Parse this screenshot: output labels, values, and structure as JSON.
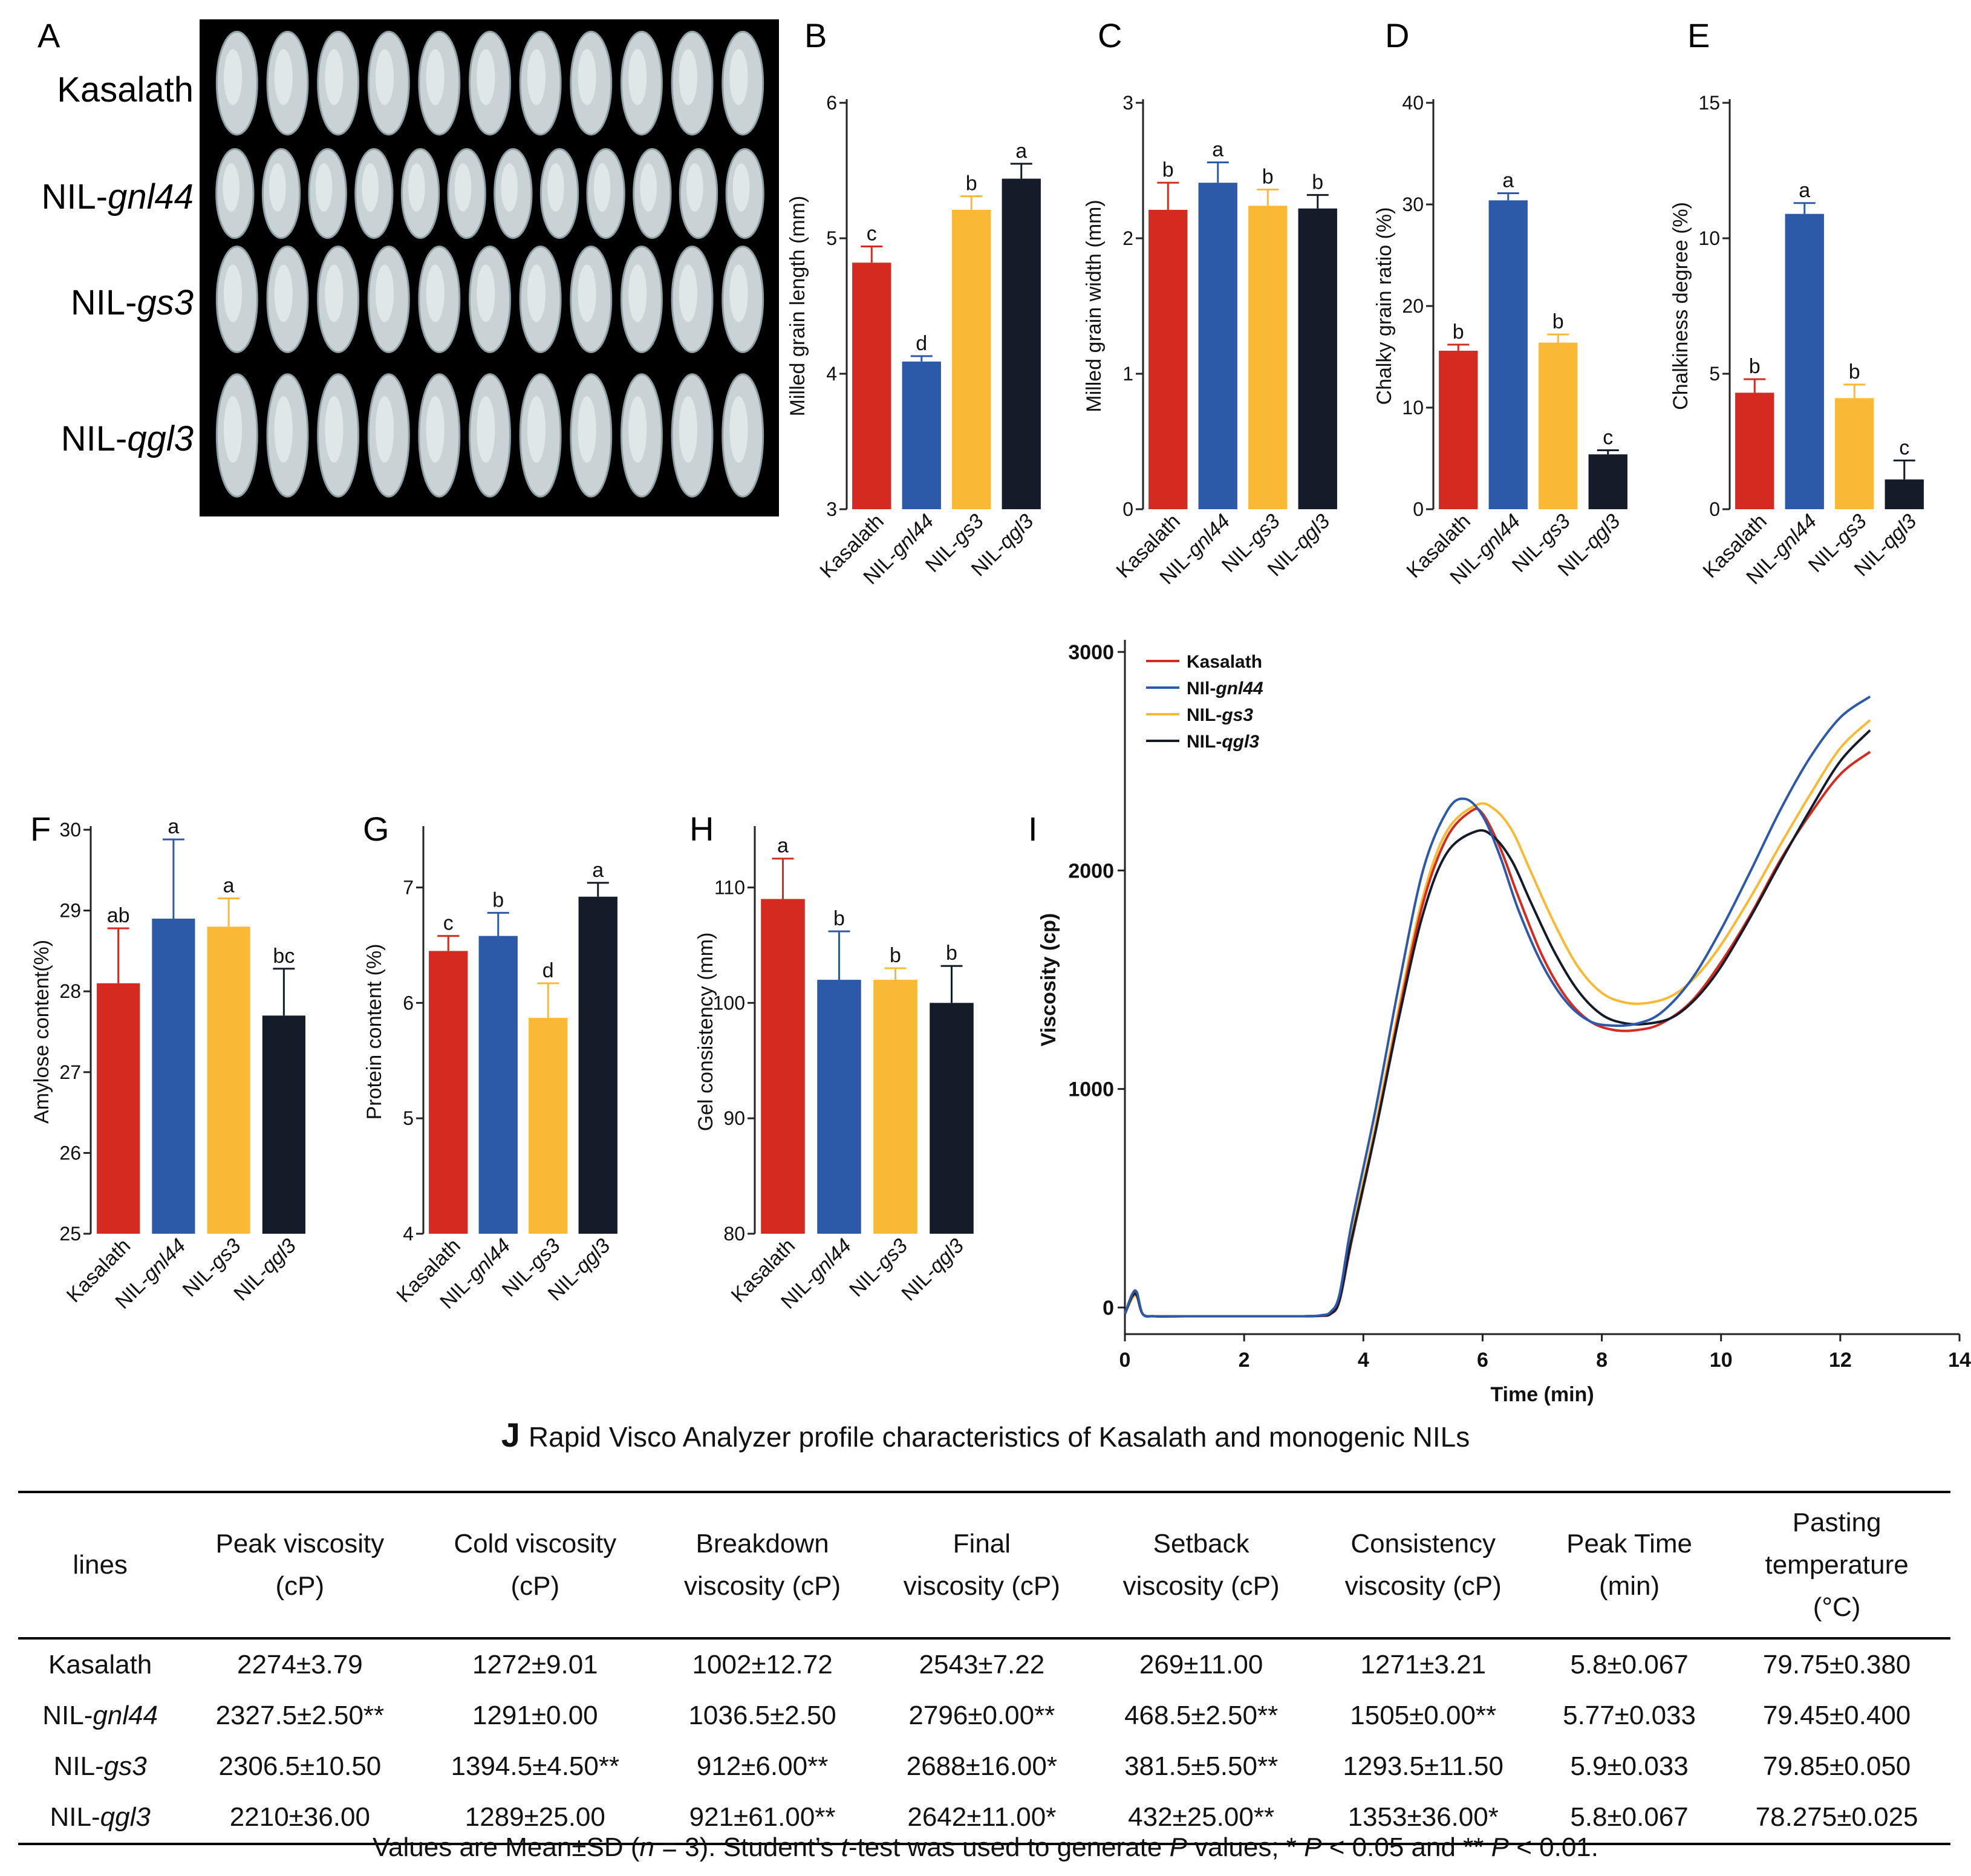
{
  "panel_letters": {
    "A": "A",
    "B": "B",
    "C": "C",
    "D": "D",
    "E": "E",
    "F": "F",
    "G": "G",
    "H": "H",
    "I": "I",
    "J": "J"
  },
  "photo_panel": {
    "rows": [
      {
        "text": "Kasalath",
        "italic": ""
      },
      {
        "text": "NIL-",
        "italic": "gnl44"
      },
      {
        "text": "NIL-",
        "italic": "gs3"
      },
      {
        "text": "NIL-",
        "italic": "qgl3"
      }
    ],
    "grains_per_row": [
      11,
      12,
      11,
      11
    ]
  },
  "colors": {
    "Kasalath": "#d42a20",
    "NIL-gnl44": "#2d5aa8",
    "NIL-gs3": "#f9b934",
    "NIL-qgl3": "#141c2a"
  },
  "categories": [
    {
      "prefix": "Kasalath",
      "italic": ""
    },
    {
      "prefix": "NIL-",
      "italic": "gnl44"
    },
    {
      "prefix": "NIL-",
      "italic": "gs3"
    },
    {
      "prefix": "NIL-",
      "italic": "qgl3"
    }
  ],
  "chart_data": [
    {
      "panel": "B",
      "type": "bar",
      "ylabel": "Milled grain length (mm)",
      "ylim": [
        3,
        6
      ],
      "yticks": [
        3,
        4,
        5,
        6
      ],
      "values": [
        4.82,
        4.09,
        5.21,
        5.44
      ],
      "errors": [
        0.12,
        0.04,
        0.1,
        0.11
      ],
      "letters": [
        "c",
        "d",
        "b",
        "a"
      ]
    },
    {
      "panel": "C",
      "type": "bar",
      "ylabel": "Milled grain width (mm)",
      "ylim": [
        0,
        3
      ],
      "yticks": [
        0,
        1,
        2,
        3
      ],
      "values": [
        2.21,
        2.41,
        2.24,
        2.22
      ],
      "errors": [
        0.2,
        0.15,
        0.12,
        0.1
      ],
      "letters": [
        "b",
        "a",
        "b",
        "b"
      ]
    },
    {
      "panel": "D",
      "type": "bar",
      "ylabel": "Chalky grain ratio (%)",
      "ylim": [
        0,
        40
      ],
      "yticks": [
        0,
        10,
        20,
        30,
        40
      ],
      "values": [
        15.6,
        30.4,
        16.4,
        5.4
      ],
      "errors": [
        0.6,
        0.7,
        0.8,
        0.4
      ],
      "letters": [
        "b",
        "a",
        "b",
        "c"
      ]
    },
    {
      "panel": "E",
      "type": "bar",
      "ylabel": "Chalkiness degree (%)",
      "ylim": [
        0,
        15
      ],
      "yticks": [
        0,
        5,
        10,
        15
      ],
      "values": [
        4.3,
        10.9,
        4.1,
        1.1
      ],
      "errors": [
        0.5,
        0.4,
        0.5,
        0.7
      ],
      "letters": [
        "b",
        "a",
        "b",
        "c"
      ]
    },
    {
      "panel": "F",
      "type": "bar",
      "ylabel": "Amylose content(%)",
      "ylim": [
        25,
        30
      ],
      "yticks": [
        25,
        26,
        27,
        28,
        29,
        30
      ],
      "values": [
        28.1,
        28.9,
        28.8,
        27.7
      ],
      "errors": [
        0.68,
        0.98,
        0.35,
        0.58
      ],
      "letters": [
        "ab",
        "a",
        "a",
        "bc"
      ]
    },
    {
      "panel": "G",
      "type": "bar",
      "ylabel": "Protein content (%)",
      "ylim": [
        4,
        7.5
      ],
      "yticks": [
        4,
        5,
        6,
        7
      ],
      "values": [
        6.45,
        6.58,
        5.87,
        6.92
      ],
      "errors": [
        0.13,
        0.2,
        0.3,
        0.12
      ],
      "letters": [
        "c",
        "b",
        "d",
        "a"
      ]
    },
    {
      "panel": "H",
      "type": "bar",
      "ylabel": "Gel consistency (mm)",
      "ylim": [
        80,
        115
      ],
      "yticks": [
        80,
        90,
        100,
        110
      ],
      "values": [
        109,
        102,
        102,
        100
      ],
      "errors": [
        3.5,
        4.2,
        1.0,
        3.2
      ],
      "letters": [
        "a",
        "b",
        "b",
        "b"
      ]
    },
    {
      "panel": "I",
      "type": "line",
      "xlabel": "Time (min)",
      "ylabel": "Viscosity (cp)",
      "xlim": [
        0,
        14
      ],
      "ylim": [
        0,
        3000
      ],
      "xticks": [
        0,
        2,
        4,
        6,
        8,
        10,
        12,
        14
      ],
      "yticks": [
        0,
        1000,
        2000,
        3000
      ],
      "legend_position": "top-left",
      "series": [
        {
          "name": "Kasalath",
          "legend_prefix": "Kasalath",
          "legend_italic": "",
          "x": [
            0,
            0.12,
            0.2,
            0.3,
            0.5,
            1,
            2,
            3,
            3.3,
            3.45,
            3.6,
            3.8,
            4.2,
            4.6,
            5.0,
            5.4,
            5.8,
            6.0,
            6.3,
            6.6,
            7.0,
            7.4,
            7.8,
            8.2,
            8.6,
            9.0,
            9.5,
            10.0,
            10.5,
            11.0,
            11.5,
            12.0,
            12.5
          ],
          "y": [
            -30,
            50,
            60,
            -30,
            -40,
            -40,
            -40,
            -40,
            -38,
            -30,
            30,
            300,
            800,
            1350,
            1850,
            2150,
            2270,
            2260,
            2100,
            1880,
            1610,
            1420,
            1310,
            1270,
            1270,
            1300,
            1400,
            1580,
            1800,
            2050,
            2260,
            2440,
            2543
          ]
        },
        {
          "name": "NIL-gnl44",
          "legend_prefix": "NIl-",
          "legend_italic": "gnl44",
          "x": [
            0,
            0.12,
            0.2,
            0.3,
            0.5,
            1,
            2,
            3,
            3.3,
            3.45,
            3.6,
            3.8,
            4.2,
            4.6,
            5.0,
            5.4,
            5.7,
            6.0,
            6.3,
            6.6,
            7.0,
            7.4,
            7.8,
            8.2,
            8.6,
            9.0,
            9.5,
            10.0,
            10.5,
            11.0,
            11.5,
            12.0,
            12.5
          ],
          "y": [
            -30,
            60,
            70,
            -30,
            -40,
            -40,
            -40,
            -40,
            -35,
            -20,
            60,
            380,
            900,
            1480,
            2000,
            2270,
            2328,
            2250,
            2060,
            1820,
            1570,
            1400,
            1310,
            1290,
            1300,
            1350,
            1500,
            1730,
            2000,
            2280,
            2520,
            2700,
            2796
          ]
        },
        {
          "name": "NIL-gs3",
          "legend_prefix": "NIL-",
          "legend_italic": "gs3",
          "x": [
            0,
            0.12,
            0.2,
            0.3,
            0.5,
            1,
            2,
            3,
            3.3,
            3.45,
            3.6,
            3.8,
            4.2,
            4.6,
            5.0,
            5.4,
            5.9,
            6.2,
            6.5,
            6.8,
            7.2,
            7.6,
            8.0,
            8.4,
            8.8,
            9.2,
            9.6,
            10.0,
            10.5,
            11.0,
            11.5,
            12.0,
            12.5
          ],
          "y": [
            -30,
            40,
            50,
            -30,
            -40,
            -40,
            -40,
            -40,
            -36,
            -25,
            40,
            330,
            830,
            1380,
            1880,
            2180,
            2300,
            2280,
            2180,
            2000,
            1760,
            1560,
            1440,
            1395,
            1395,
            1430,
            1520,
            1660,
            1880,
            2120,
            2350,
            2560,
            2688
          ]
        },
        {
          "name": "NIL-qgl3",
          "legend_prefix": "NIL-",
          "legend_italic": "qgl3",
          "x": [
            0,
            0.12,
            0.2,
            0.3,
            0.5,
            1,
            2,
            3,
            3.3,
            3.45,
            3.6,
            3.8,
            4.2,
            4.6,
            5.0,
            5.4,
            5.9,
            6.2,
            6.5,
            6.8,
            7.2,
            7.6,
            8.0,
            8.4,
            8.8,
            9.2,
            9.6,
            10.0,
            10.5,
            11.0,
            11.5,
            12.0,
            12.5
          ],
          "y": [
            -30,
            50,
            55,
            -30,
            -40,
            -40,
            -40,
            -40,
            -37,
            -28,
            35,
            310,
            800,
            1330,
            1800,
            2080,
            2180,
            2150,
            2040,
            1860,
            1630,
            1450,
            1340,
            1300,
            1300,
            1330,
            1420,
            1560,
            1790,
            2040,
            2280,
            2500,
            2642
          ]
        }
      ]
    },
    {
      "panel": "J",
      "type": "table"
    }
  ],
  "table": {
    "letter": "J",
    "title": "Rapid Visco Analyzer profile characteristics of Kasalath and monogenic NILs",
    "headers": [
      [
        "lines"
      ],
      [
        "Peak viscosity",
        "(cP)"
      ],
      [
        "Cold viscosity",
        "(cP)"
      ],
      [
        "Breakdown",
        "viscosity (cP)"
      ],
      [
        "Final",
        "viscosity (cP)"
      ],
      [
        "Setback",
        "viscosity (cP)"
      ],
      [
        "Consistency",
        "viscosity (cP)"
      ],
      [
        "Peak Time",
        "(min)"
      ],
      [
        "Pasting",
        "temperature",
        "(°C)"
      ]
    ],
    "rows": [
      {
        "line_prefix": "Kasalath",
        "line_italic": "",
        "cells": [
          "2274±3.79",
          "1272±9.01",
          "1002±12.72",
          "2543±7.22",
          "269±11.00",
          "1271±3.21",
          "5.8±0.067",
          "79.75±0.380"
        ]
      },
      {
        "line_prefix": "NIL-",
        "line_italic": "gnl44",
        "cells": [
          "2327.5±2.50**",
          "1291±0.00",
          "1036.5±2.50",
          "2796±0.00**",
          "468.5±2.50**",
          "1505±0.00**",
          "5.77±0.033",
          "79.45±0.400"
        ]
      },
      {
        "line_prefix": "NIL-",
        "line_italic": "gs3",
        "cells": [
          "2306.5±10.50",
          "1394.5±4.50**",
          "912±6.00**",
          "2688±16.00*",
          "381.5±5.50**",
          "1293.5±11.50",
          "5.9±0.033",
          "79.85±0.050"
        ]
      },
      {
        "line_prefix": "NIL-",
        "line_italic": "qgl3",
        "cells": [
          "2210±36.00",
          "1289±25.00",
          "921±61.00**",
          "2642±11.00*",
          "432±25.00**",
          "1353±36.00*",
          "5.8±0.067",
          "78.275±0.025"
        ]
      }
    ],
    "footnote": {
      "p1": "Values are Mean±SD (",
      "n": "n",
      "p2": " = 3). Student’s ",
      "t": "t",
      "p3": "-test was used to generate ",
      "P1": "P",
      "p4": " values; * ",
      "P2": "P",
      "p5": " < 0.05 and ** ",
      "P3": "P",
      "p6": " < 0.01."
    }
  }
}
